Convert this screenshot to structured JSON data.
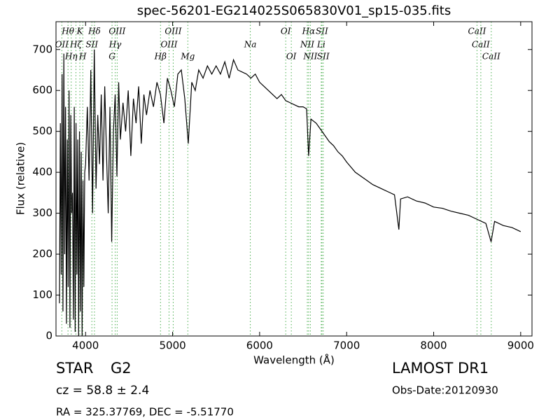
{
  "chart_data": {
    "type": "line",
    "title": "spec-56201-EG214025S065830V01_sp15-035.fits",
    "x_label": "Wavelength (Å)",
    "y_label": "Flux (relative)",
    "xlim": [
      3660,
      9130
    ],
    "ylim": [
      0,
      768
    ],
    "xticks": [
      4000,
      5000,
      6000,
      7000,
      8000,
      9000
    ],
    "yticks": [
      0,
      100,
      200,
      300,
      400,
      500,
      600,
      700
    ],
    "color": "#000000",
    "line_color": "#4caf50",
    "x": [
      3700,
      3710,
      3720,
      3730,
      3740,
      3750,
      3760,
      3770,
      3780,
      3790,
      3800,
      3810,
      3820,
      3830,
      3840,
      3850,
      3860,
      3870,
      3880,
      3890,
      3900,
      3910,
      3920,
      3930,
      3940,
      3950,
      3960,
      3970,
      3980,
      3990,
      4000,
      4020,
      4040,
      4060,
      4080,
      4100,
      4120,
      4140,
      4160,
      4180,
      4200,
      4220,
      4240,
      4260,
      4280,
      4300,
      4320,
      4340,
      4360,
      4380,
      4400,
      4430,
      4460,
      4490,
      4520,
      4550,
      4580,
      4610,
      4640,
      4670,
      4700,
      4740,
      4780,
      4820,
      4860,
      4900,
      4940,
      4980,
      5020,
      5060,
      5100,
      5140,
      5180,
      5220,
      5260,
      5300,
      5350,
      5400,
      5450,
      5500,
      5550,
      5600,
      5650,
      5700,
      5750,
      5800,
      5850,
      5900,
      5950,
      6000,
      6050,
      6100,
      6150,
      6200,
      6250,
      6300,
      6350,
      6400,
      6450,
      6500,
      6540,
      6563,
      6590,
      6650,
      6700,
      6750,
      6800,
      6850,
      6900,
      6950,
      7000,
      7100,
      7200,
      7300,
      7400,
      7500,
      7550,
      7600,
      7620,
      7700,
      7800,
      7900,
      8000,
      8100,
      8200,
      8300,
      8400,
      8500,
      8600,
      8660,
      8700,
      8800,
      8900,
      9000
    ],
    "values": [
      80,
      520,
      150,
      640,
      60,
      690,
      200,
      560,
      30,
      480,
      120,
      600,
      20,
      540,
      300,
      350,
      40,
      560,
      10,
      520,
      150,
      480,
      0,
      500,
      60,
      450,
      0,
      380,
      120,
      400,
      420,
      560,
      380,
      650,
      300,
      700,
      360,
      540,
      420,
      590,
      380,
      610,
      450,
      300,
      560,
      230,
      500,
      590,
      390,
      620,
      480,
      570,
      500,
      600,
      440,
      580,
      520,
      610,
      470,
      590,
      540,
      600,
      560,
      620,
      590,
      520,
      630,
      600,
      560,
      640,
      650,
      580,
      470,
      620,
      600,
      650,
      630,
      660,
      640,
      660,
      640,
      670,
      630,
      675,
      650,
      645,
      640,
      630,
      640,
      620,
      610,
      600,
      590,
      580,
      590,
      575,
      570,
      565,
      560,
      560,
      555,
      440,
      530,
      520,
      505,
      490,
      475,
      465,
      450,
      440,
      425,
      400,
      385,
      370,
      360,
      350,
      345,
      260,
      335,
      340,
      330,
      325,
      315,
      312,
      305,
      300,
      295,
      285,
      275,
      230,
      280,
      270,
      265,
      255
    ],
    "spectral_lines": [
      {
        "label": "Hθ",
        "x": 3798
      },
      {
        "label": "K",
        "x": 3934
      },
      {
        "label": "Hδ",
        "x": 4102
      },
      {
        "label": "OIII",
        "x": 4363
      },
      {
        "label": "OIII",
        "x": 5007
      },
      {
        "label": "OI",
        "x": 6300
      },
      {
        "label": "Hα",
        "x": 6563
      },
      {
        "label": "SII",
        "x": 6716
      },
      {
        "label": "CaII",
        "x": 8498
      },
      {
        "label": "OII",
        "x": 3727
      },
      {
        "label": "Hζ",
        "x": 3889
      },
      {
        "label": "SII",
        "x": 4072
      },
      {
        "label": "Hγ",
        "x": 4340
      },
      {
        "label": "OIII",
        "x": 4959
      },
      {
        "label": "Na",
        "x": 5893
      },
      {
        "label": "NII",
        "x": 6548
      },
      {
        "label": "Li",
        "x": 6708
      },
      {
        "label": "CaII",
        "x": 8542
      },
      {
        "label": "Hη",
        "x": 3835
      },
      {
        "label": "H",
        "x": 3968
      },
      {
        "label": "G",
        "x": 4304
      },
      {
        "label": "Hβ",
        "x": 4861
      },
      {
        "label": "Mg",
        "x": 5175
      },
      {
        "label": "OI",
        "x": 6364
      },
      {
        "label": "NII",
        "x": 6583
      },
      {
        "label": "SII",
        "x": 6731
      },
      {
        "label": "CaII",
        "x": 8662
      }
    ]
  },
  "footer": {
    "class": "STAR",
    "subclass": "G2",
    "cz": "cz = 58.8 ± 2.4",
    "coords": "RA = 325.37769, DEC = -5.51770",
    "survey": "LAMOST DR1",
    "obs_date": "Obs-Date:20120930"
  }
}
